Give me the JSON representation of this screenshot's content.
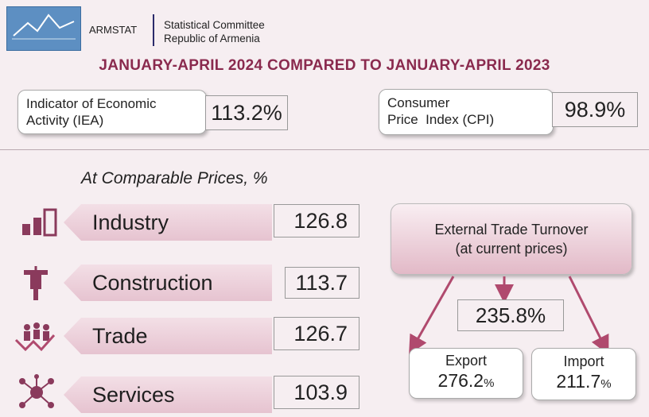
{
  "header": {
    "brand": "ARMSTAT",
    "org_line1": "Statistical Committee",
    "org_line2": "Republic of Armenia",
    "title": "JANUARY-APRIL 2024 COMPARED TO JANUARY-APRIL 2023"
  },
  "indicators": [
    {
      "label_line1": "Indicator of Economic",
      "label_line2": "Activity (IEA)",
      "value": "113.2%"
    },
    {
      "label_line1": "Consumer",
      "label_line2": "Price  Index (CPI)",
      "value": "98.9%"
    }
  ],
  "subtitle": "At Comparable Prices, %",
  "sectors": [
    {
      "label": "Industry",
      "value": "126.8",
      "icon": "bar-chart-icon"
    },
    {
      "label": "Construction",
      "value": "113.7",
      "icon": "jackhammer-icon"
    },
    {
      "label": "Trade",
      "value": "126.7",
      "icon": "people-growth-icon"
    },
    {
      "label": "Services",
      "value": "103.9",
      "icon": "network-icon"
    }
  ],
  "trade": {
    "title_line1": "External Trade Turnover",
    "title_line2": "(at current prices)",
    "total": "235.8%",
    "export_label": "Export",
    "export_value": "276.2",
    "import_label": "Import",
    "import_value": "211.7",
    "percent_sign": "%"
  },
  "colors": {
    "title": "#8a2a4e",
    "accent": "#b04a6e",
    "background": "#f6eef1"
  }
}
